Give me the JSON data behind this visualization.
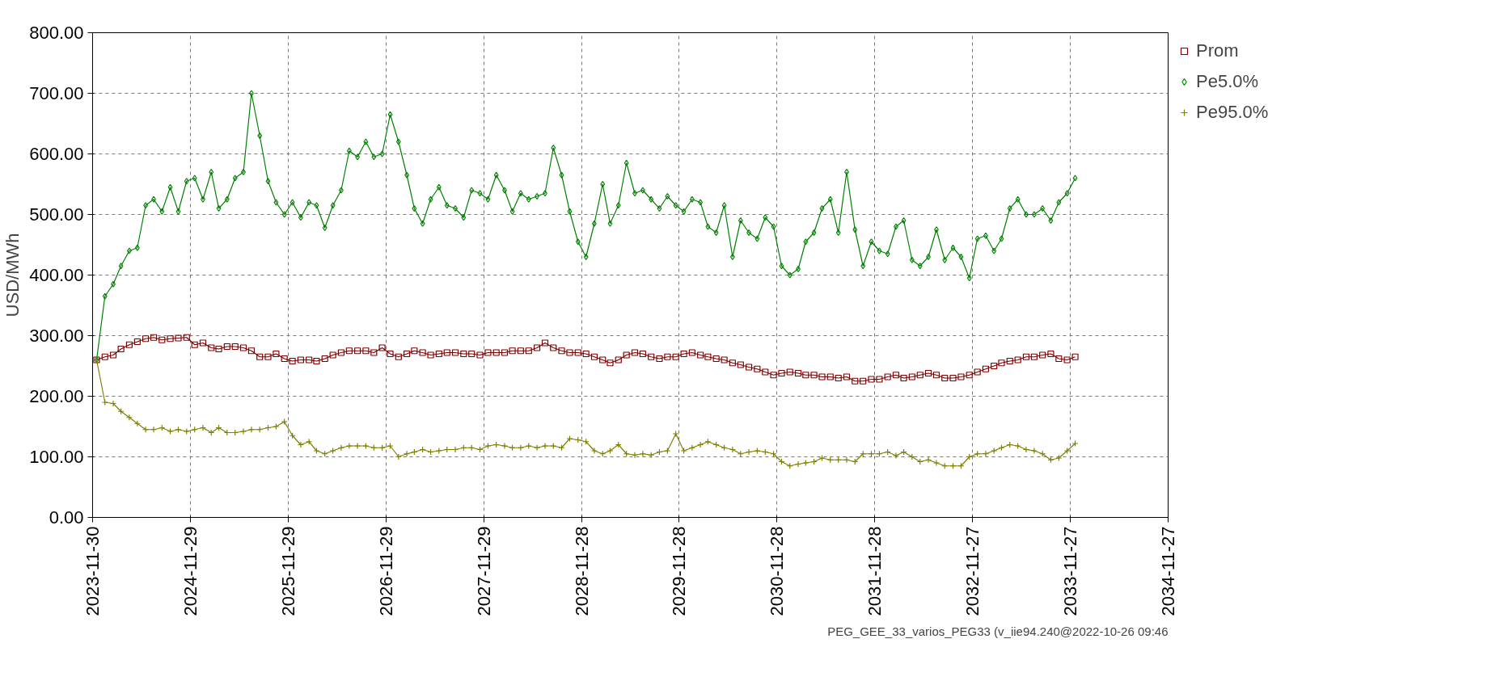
{
  "chart_data": {
    "type": "line",
    "ylabel": "USD/MWh",
    "x": [
      "2023-12-15",
      "2024-01-15",
      "2024-02-15",
      "2024-03-15",
      "2024-04-15",
      "2024-05-15",
      "2024-06-15",
      "2024-07-15",
      "2024-08-15",
      "2024-09-15",
      "2024-10-15",
      "2024-11-15",
      "2024-12-15",
      "2025-01-15",
      "2025-02-15",
      "2025-03-15",
      "2025-04-15",
      "2025-05-15",
      "2025-06-15",
      "2025-07-15",
      "2025-08-15",
      "2025-09-15",
      "2025-10-15",
      "2025-11-15",
      "2025-12-15",
      "2026-01-15",
      "2026-02-15",
      "2026-03-15",
      "2026-04-15",
      "2026-05-15",
      "2026-06-15",
      "2026-07-15",
      "2026-08-15",
      "2026-09-15",
      "2026-10-15",
      "2026-11-15",
      "2026-12-15",
      "2027-01-15",
      "2027-02-15",
      "2027-03-15",
      "2027-04-15",
      "2027-05-15",
      "2027-06-15",
      "2027-07-15",
      "2027-08-15",
      "2027-09-15",
      "2027-10-15",
      "2027-11-15",
      "2027-12-15",
      "2028-01-15",
      "2028-02-15",
      "2028-03-15",
      "2028-04-15",
      "2028-05-15",
      "2028-06-15",
      "2028-07-15",
      "2028-08-15",
      "2028-09-15",
      "2028-10-15",
      "2028-11-15",
      "2028-12-15",
      "2029-01-15",
      "2029-02-15",
      "2029-03-15",
      "2029-04-15",
      "2029-05-15",
      "2029-06-15",
      "2029-07-15",
      "2029-08-15",
      "2029-09-15",
      "2029-10-15",
      "2029-11-15",
      "2029-12-15",
      "2030-01-15",
      "2030-02-15",
      "2030-03-15",
      "2030-04-15",
      "2030-05-15",
      "2030-06-15",
      "2030-07-15",
      "2030-08-15",
      "2030-09-15",
      "2030-10-15",
      "2030-11-15",
      "2030-12-15",
      "2031-01-15",
      "2031-02-15",
      "2031-03-15",
      "2031-04-15",
      "2031-05-15",
      "2031-06-15",
      "2031-07-15",
      "2031-08-15",
      "2031-09-15",
      "2031-10-15",
      "2031-11-15",
      "2031-12-15",
      "2032-01-15",
      "2032-02-15",
      "2032-03-15",
      "2032-04-15",
      "2032-05-15",
      "2032-06-15",
      "2032-07-15",
      "2032-08-15",
      "2032-09-15",
      "2032-10-15",
      "2032-11-15",
      "2032-12-15",
      "2033-01-15",
      "2033-02-15",
      "2033-03-15",
      "2033-04-15",
      "2033-05-15",
      "2033-06-15",
      "2033-07-15",
      "2033-08-15",
      "2033-09-15",
      "2033-10-15",
      "2033-11-15",
      "2033-12-15"
    ],
    "series": [
      {
        "name": "Prom",
        "color": "#800000",
        "marker": "square",
        "values": [
          260,
          265,
          268,
          278,
          285,
          290,
          295,
          297,
          293,
          295,
          296,
          297,
          285,
          288,
          280,
          278,
          282,
          282,
          280,
          275,
          265,
          265,
          270,
          262,
          258,
          260,
          260,
          258,
          262,
          268,
          272,
          275,
          275,
          275,
          272,
          280,
          270,
          265,
          270,
          275,
          272,
          268,
          270,
          272,
          272,
          270,
          270,
          268,
          272,
          272,
          272,
          275,
          275,
          275,
          280,
          288,
          280,
          275,
          272,
          272,
          270,
          265,
          260,
          255,
          260,
          268,
          272,
          270,
          265,
          262,
          265,
          265,
          270,
          272,
          268,
          265,
          262,
          260,
          255,
          252,
          248,
          245,
          240,
          235,
          238,
          240,
          238,
          235,
          235,
          232,
          232,
          230,
          232,
          225,
          225,
          228,
          228,
          232,
          235,
          230,
          232,
          235,
          238,
          235,
          230,
          230,
          232,
          235,
          240,
          245,
          250,
          255,
          258,
          260,
          265,
          265,
          268,
          270,
          262,
          260,
          265
        ]
      },
      {
        "name": "Pe5.0%",
        "color": "#008000",
        "marker": "diamond",
        "values": [
          260,
          365,
          385,
          415,
          440,
          445,
          515,
          525,
          505,
          545,
          505,
          555,
          560,
          525,
          570,
          510,
          525,
          560,
          570,
          700,
          630,
          555,
          520,
          500,
          520,
          495,
          520,
          515,
          478,
          515,
          540,
          605,
          595,
          620,
          595,
          600,
          665,
          620,
          565,
          510,
          485,
          525,
          545,
          515,
          510,
          495,
          540,
          535,
          525,
          565,
          540,
          505,
          535,
          525,
          530,
          535,
          610,
          565,
          505,
          455,
          430,
          485,
          550,
          485,
          515,
          585,
          535,
          540,
          525,
          510,
          530,
          515,
          505,
          525,
          520,
          480,
          470,
          515,
          430,
          490,
          470,
          460,
          495,
          480,
          415,
          400,
          410,
          455,
          470,
          510,
          525,
          470,
          570,
          475,
          415,
          455,
          440,
          435,
          480,
          490,
          425,
          415,
          430,
          475,
          425,
          445,
          430,
          395,
          460,
          465,
          440,
          460,
          510,
          525,
          500,
          500,
          510,
          490,
          520,
          535,
          560
        ]
      },
      {
        "name": "Pe95.0%",
        "color": "#808000",
        "marker": "cross",
        "values": [
          260,
          190,
          188,
          175,
          165,
          155,
          145,
          145,
          148,
          142,
          145,
          142,
          145,
          148,
          140,
          148,
          140,
          140,
          142,
          145,
          145,
          148,
          150,
          158,
          135,
          120,
          125,
          110,
          105,
          110,
          115,
          118,
          118,
          118,
          115,
          115,
          118,
          100,
          105,
          108,
          112,
          108,
          110,
          112,
          112,
          115,
          115,
          112,
          118,
          120,
          118,
          115,
          115,
          118,
          115,
          118,
          118,
          115,
          130,
          128,
          125,
          110,
          105,
          110,
          120,
          105,
          103,
          105,
          103,
          108,
          110,
          138,
          110,
          115,
          120,
          125,
          120,
          115,
          112,
          105,
          108,
          110,
          108,
          105,
          92,
          85,
          88,
          90,
          92,
          98,
          95,
          95,
          95,
          92,
          105,
          105,
          105,
          108,
          102,
          108,
          100,
          92,
          95,
          90,
          85,
          85,
          85,
          100,
          105,
          105,
          110,
          115,
          120,
          118,
          112,
          110,
          105,
          95,
          98,
          110,
          122
        ]
      }
    ],
    "xlim": [
      "2023-11-30",
      "2034-11-27"
    ],
    "xticks": [
      "2023-11-30",
      "2024-11-29",
      "2025-11-29",
      "2026-11-29",
      "2027-11-29",
      "2028-11-28",
      "2029-11-28",
      "2030-11-28",
      "2031-11-28",
      "2032-11-27",
      "2033-11-27",
      "2034-11-27"
    ],
    "ylim": [
      0,
      800
    ],
    "yticks": [
      {
        "value": 0,
        "label": "0.00"
      },
      {
        "value": 100,
        "label": "100.00"
      },
      {
        "value": 200,
        "label": "200.00"
      },
      {
        "value": 300,
        "label": "300.00"
      },
      {
        "value": 400,
        "label": "400.00"
      },
      {
        "value": 500,
        "label": "500.00"
      },
      {
        "value": 600,
        "label": "600.00"
      },
      {
        "value": 700,
        "label": "700.00"
      },
      {
        "value": 800,
        "label": "800.00"
      }
    ],
    "grid": true,
    "legend": "top right",
    "line_style": "solid",
    "annotations": [
      "PEG_GEE_33_varios_PEG33 (v_iie94.240@2022-10-26 09:46"
    ]
  }
}
